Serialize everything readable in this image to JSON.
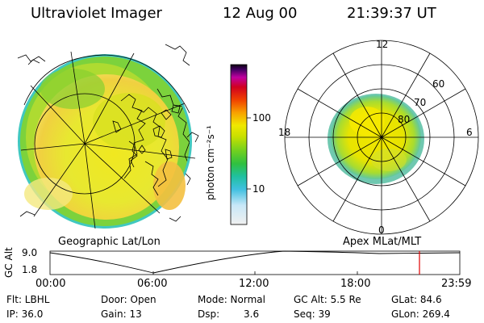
{
  "header": {
    "title": "Ultraviolet Imager",
    "date": "12 Aug 00",
    "time": "21:39:37 UT"
  },
  "colorbar": {
    "unit_label": "photon cm⁻²s⁻¹",
    "ticks": [
      "100",
      "10"
    ]
  },
  "polar_plot": {
    "mlt_labels": [
      "12",
      "18",
      "6",
      "0"
    ],
    "lat_labels": [
      "60",
      "70",
      "80"
    ]
  },
  "panel_labels": {
    "left": "Geographic Lat/Lon",
    "right": "Apex MLat/MLT"
  },
  "altitude_plot": {
    "axis_title": "GC Alt",
    "y_ticks": [
      "9.0",
      "1.8"
    ],
    "x_ticks": [
      "00:00",
      "06:00",
      "12:00",
      "18:00",
      "23:59"
    ],
    "marker_color": "#e00000"
  },
  "info": {
    "flt": "Flt: LBHL",
    "ip": "IP: 36.0",
    "door": "Door: Open",
    "gain": "Gain: 13",
    "mode": "Mode: Normal",
    "dsp_label": "Dsp:",
    "dsp_value": "3.6",
    "gc_alt": "GC Alt: 5.5 Re",
    "seq": "Seq: 39",
    "glat": "GLat: 84.6",
    "glon": "GLon: 269.4"
  }
}
